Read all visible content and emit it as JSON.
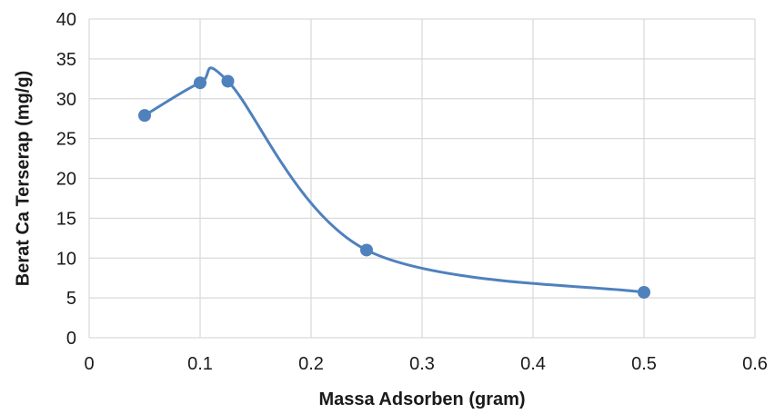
{
  "chart_data": {
    "type": "scatter",
    "title": "",
    "xlabel": "Massa Adsorben (gram)",
    "ylabel": "Berat Ca Terserap (mg/g)",
    "xlim": [
      0,
      0.6
    ],
    "ylim": [
      0,
      40
    ],
    "x_ticks": [
      "0",
      "0.1",
      "0.2",
      "0.3",
      "0.4",
      "0.5",
      "0.6"
    ],
    "y_ticks": [
      "0",
      "5",
      "10",
      "15",
      "20",
      "25",
      "30",
      "35",
      "40"
    ],
    "grid": true,
    "smooth_line": true,
    "series": [
      {
        "x": [
          0.05,
          0.1,
          0.125,
          0.25,
          0.5
        ],
        "y": [
          27.9,
          32.0,
          32.2,
          11.0,
          5.7
        ]
      }
    ],
    "colors": {
      "series": "#4f81bd",
      "grid": "#d9d9d9",
      "text": "#1a1a1a"
    }
  }
}
